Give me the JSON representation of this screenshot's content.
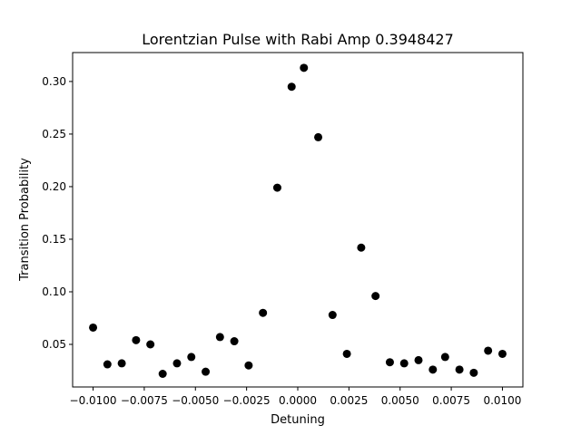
{
  "chart_data": {
    "type": "scatter",
    "title": "Lorentzian Pulse with Rabi Amp 0.3948427",
    "xlabel": "Detuning",
    "ylabel": "Transition Probability",
    "xlim": [
      -0.011,
      0.011
    ],
    "ylim": [
      0.0095,
      0.3275
    ],
    "grid": false,
    "marker_color": "#000000",
    "x_ticks": [
      -0.01,
      -0.0075,
      -0.005,
      -0.0025,
      0.0,
      0.0025,
      0.005,
      0.0075,
      0.01
    ],
    "x_tick_labels": [
      "−0.0100",
      "−0.0075",
      "−0.0050",
      "−0.0025",
      "0.0000",
      "0.0025",
      "0.0050",
      "0.0075",
      "0.0100"
    ],
    "y_ticks": [
      0.05,
      0.1,
      0.15,
      0.2,
      0.25,
      0.3
    ],
    "y_tick_labels": [
      "0.05",
      "0.10",
      "0.15",
      "0.20",
      "0.25",
      "0.30"
    ],
    "points": [
      {
        "x": -0.01,
        "y": 0.066
      },
      {
        "x": -0.0093,
        "y": 0.031
      },
      {
        "x": -0.0086,
        "y": 0.032
      },
      {
        "x": -0.0079,
        "y": 0.054
      },
      {
        "x": -0.0072,
        "y": 0.05
      },
      {
        "x": -0.0066,
        "y": 0.022
      },
      {
        "x": -0.0059,
        "y": 0.032
      },
      {
        "x": -0.0052,
        "y": 0.038
      },
      {
        "x": -0.0045,
        "y": 0.024
      },
      {
        "x": -0.0038,
        "y": 0.057
      },
      {
        "x": -0.0031,
        "y": 0.053
      },
      {
        "x": -0.0024,
        "y": 0.03
      },
      {
        "x": -0.0017,
        "y": 0.08
      },
      {
        "x": -0.001,
        "y": 0.199
      },
      {
        "x": -0.0003,
        "y": 0.295
      },
      {
        "x": 0.0003,
        "y": 0.313
      },
      {
        "x": 0.001,
        "y": 0.247
      },
      {
        "x": 0.0017,
        "y": 0.078
      },
      {
        "x": 0.0024,
        "y": 0.041
      },
      {
        "x": 0.0031,
        "y": 0.142
      },
      {
        "x": 0.0038,
        "y": 0.096
      },
      {
        "x": 0.0045,
        "y": 0.033
      },
      {
        "x": 0.0052,
        "y": 0.032
      },
      {
        "x": 0.0059,
        "y": 0.035
      },
      {
        "x": 0.0066,
        "y": 0.026
      },
      {
        "x": 0.0072,
        "y": 0.038
      },
      {
        "x": 0.0079,
        "y": 0.026
      },
      {
        "x": 0.0086,
        "y": 0.023
      },
      {
        "x": 0.0093,
        "y": 0.044
      },
      {
        "x": 0.01,
        "y": 0.041
      }
    ]
  }
}
